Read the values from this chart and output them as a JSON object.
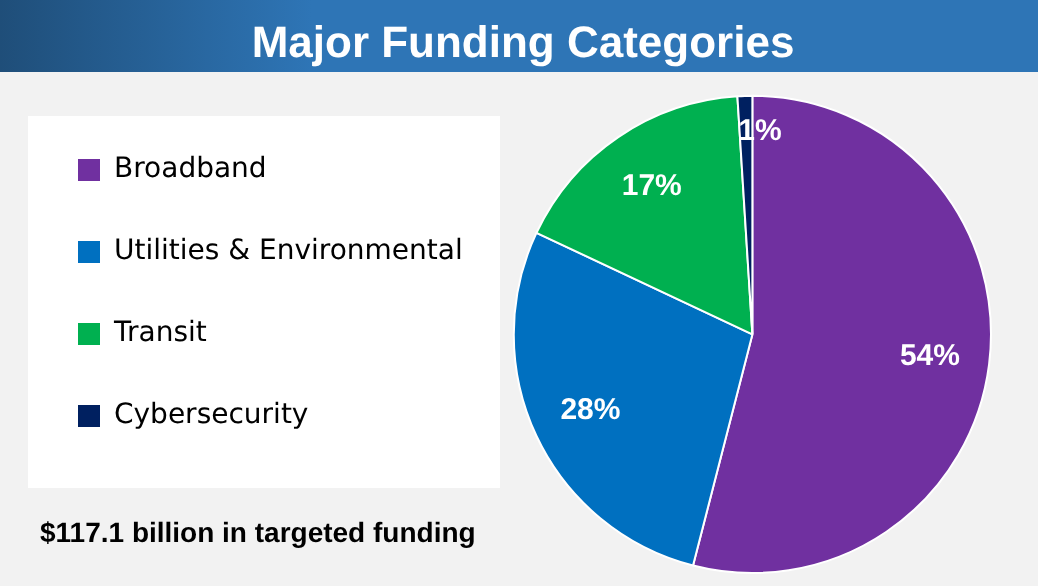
{
  "chart_data": {
    "type": "pie",
    "title": "Major Funding Categories",
    "categories": [
      "Broadband",
      "Utilities & Environmental",
      "Transit",
      "Cybersecurity"
    ],
    "values": [
      54,
      28,
      17,
      1
    ],
    "colors": [
      "#7030a0",
      "#0070c0",
      "#00b050",
      "#002060"
    ],
    "value_labels": [
      "54%",
      "28%",
      "17%",
      "1%"
    ],
    "legend": "left",
    "annotations": [
      "$117.1 billion in targeted funding"
    ]
  }
}
